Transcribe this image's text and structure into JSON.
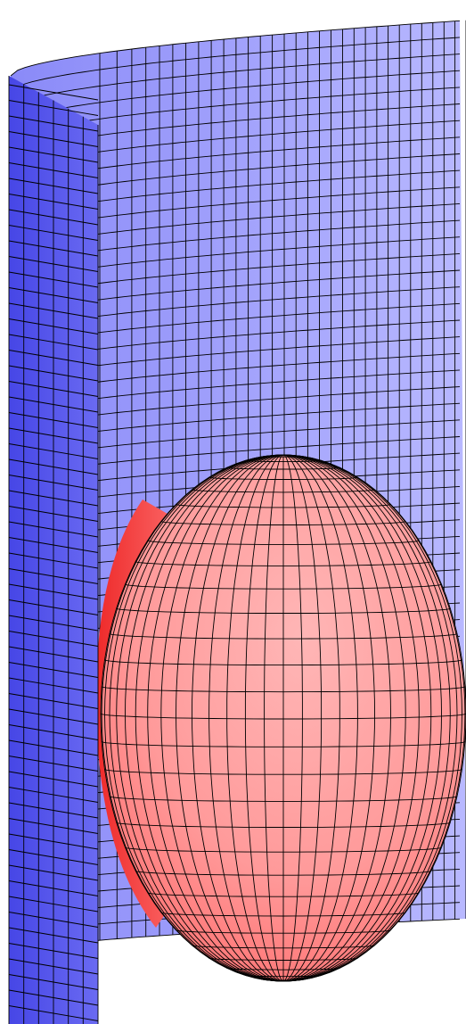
{
  "scene": {
    "background_color": "#ffffff",
    "grid_line_color": "#000000",
    "cylinder": {
      "name": "cylinder-surface",
      "color_lit": "#b4b4ff",
      "color_dark": "#5a5aee",
      "inner_color": "#a8a8fb",
      "horizontal_bands": 54,
      "panels_on_back_wall": 30,
      "panels_on_front_strip": 6
    },
    "ellipsoid": {
      "name": "ellipsoid-surface",
      "color_lit": "#ffb2b2",
      "color_mid": "#ff8080",
      "color_dark": "#ee3030",
      "latitude_bands": 30,
      "longitude_bands": 30
    }
  }
}
